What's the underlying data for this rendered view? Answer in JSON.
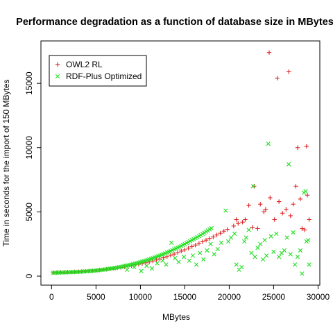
{
  "chart_data": {
    "type": "scatter",
    "title": "Performance degradation as a function of database size in MBytes",
    "xlabel": "MBytes",
    "ylabel": "Time in seconds for the import of 150 MBytes",
    "xlim": [
      -1200,
      30200
    ],
    "ylim": [
      -700,
      18300
    ],
    "x_ticks": [
      0,
      5000,
      10000,
      15000,
      20000,
      25000,
      30000
    ],
    "y_ticks": [
      0,
      5000,
      10000,
      15000
    ],
    "grid": false,
    "legend_position": "top-left",
    "series": [
      {
        "name": "OWL2 RL",
        "marker": "+",
        "color": "#DF2020",
        "points": [
          [
            200,
            280
          ],
          [
            600,
            290
          ],
          [
            1000,
            300
          ],
          [
            1400,
            300
          ],
          [
            1800,
            310
          ],
          [
            2200,
            320
          ],
          [
            2600,
            330
          ],
          [
            3000,
            340
          ],
          [
            3400,
            360
          ],
          [
            3800,
            380
          ],
          [
            4200,
            400
          ],
          [
            4600,
            420
          ],
          [
            5000,
            450
          ],
          [
            5400,
            480
          ],
          [
            5800,
            500
          ],
          [
            6200,
            530
          ],
          [
            6600,
            560
          ],
          [
            7000,
            600
          ],
          [
            7400,
            640
          ],
          [
            7800,
            680
          ],
          [
            8200,
            720
          ],
          [
            8600,
            770
          ],
          [
            9000,
            820
          ],
          [
            9400,
            870
          ],
          [
            9800,
            920
          ],
          [
            10200,
            980
          ],
          [
            10600,
            1040
          ],
          [
            11000,
            1100
          ],
          [
            11400,
            1180
          ],
          [
            11800,
            1260
          ],
          [
            12200,
            1340
          ],
          [
            12600,
            1430
          ],
          [
            13000,
            1520
          ],
          [
            13400,
            1620
          ],
          [
            13800,
            1720
          ],
          [
            14200,
            1830
          ],
          [
            14600,
            1950
          ],
          [
            15000,
            2050
          ],
          [
            15400,
            2180
          ],
          [
            15800,
            2300
          ],
          [
            16200,
            2420
          ],
          [
            16600,
            2550
          ],
          [
            17000,
            2680
          ],
          [
            17400,
            2800
          ],
          [
            17800,
            2930
          ],
          [
            18200,
            3050
          ],
          [
            18600,
            3200
          ],
          [
            19000,
            3340
          ],
          [
            19400,
            3500
          ],
          [
            19800,
            3640
          ],
          [
            20500,
            3900
          ],
          [
            20800,
            4400
          ],
          [
            21000,
            4100
          ],
          [
            21500,
            4200
          ],
          [
            21800,
            4400
          ],
          [
            22200,
            5500
          ],
          [
            22600,
            3800
          ],
          [
            22800,
            7000
          ],
          [
            23200,
            3700
          ],
          [
            23500,
            5600
          ],
          [
            23900,
            5000
          ],
          [
            24100,
            5200
          ],
          [
            24500,
            17400
          ],
          [
            24600,
            6100
          ],
          [
            25100,
            4400
          ],
          [
            25400,
            15400
          ],
          [
            25600,
            5800
          ],
          [
            26000,
            4900
          ],
          [
            26400,
            5200
          ],
          [
            26700,
            15900
          ],
          [
            26900,
            4700
          ],
          [
            27200,
            5600
          ],
          [
            27500,
            7000
          ],
          [
            27700,
            10000
          ],
          [
            28000,
            6000
          ],
          [
            28200,
            3700
          ],
          [
            28500,
            3600
          ],
          [
            28700,
            10100
          ],
          [
            28800,
            6300
          ],
          [
            29000,
            4400
          ]
        ]
      },
      {
        "name": "RDF-Plus Optimized",
        "marker": "x",
        "color": "#20DF20",
        "points": [
          [
            200,
            250
          ],
          [
            400,
            260
          ],
          [
            600,
            270
          ],
          [
            800,
            270
          ],
          [
            1000,
            280
          ],
          [
            1200,
            280
          ],
          [
            1400,
            290
          ],
          [
            1600,
            290
          ],
          [
            1800,
            300
          ],
          [
            2000,
            300
          ],
          [
            2200,
            310
          ],
          [
            2400,
            310
          ],
          [
            2600,
            320
          ],
          [
            2800,
            320
          ],
          [
            3000,
            330
          ],
          [
            3200,
            340
          ],
          [
            3400,
            350
          ],
          [
            3600,
            360
          ],
          [
            3800,
            370
          ],
          [
            4000,
            380
          ],
          [
            4200,
            390
          ],
          [
            4400,
            400
          ],
          [
            4600,
            410
          ],
          [
            4800,
            420
          ],
          [
            5000,
            440
          ],
          [
            5200,
            450
          ],
          [
            5400,
            470
          ],
          [
            5600,
            480
          ],
          [
            5800,
            500
          ],
          [
            6000,
            520
          ],
          [
            6200,
            540
          ],
          [
            6400,
            560
          ],
          [
            6600,
            580
          ],
          [
            6800,
            600
          ],
          [
            7000,
            620
          ],
          [
            7200,
            640
          ],
          [
            7400,
            670
          ],
          [
            7600,
            700
          ],
          [
            7800,
            720
          ],
          [
            8000,
            750
          ],
          [
            8200,
            780
          ],
          [
            8400,
            810
          ],
          [
            8600,
            840
          ],
          [
            8800,
            870
          ],
          [
            9000,
            900
          ],
          [
            9200,
            940
          ],
          [
            9400,
            980
          ],
          [
            9600,
            1010
          ],
          [
            9800,
            1050
          ],
          [
            10000,
            1090
          ],
          [
            10200,
            1130
          ],
          [
            10400,
            1170
          ],
          [
            10600,
            1210
          ],
          [
            10800,
            1260
          ],
          [
            11000,
            1300
          ],
          [
            11200,
            1350
          ],
          [
            11400,
            1400
          ],
          [
            11600,
            1450
          ],
          [
            11800,
            1500
          ],
          [
            12000,
            1550
          ],
          [
            12200,
            1600
          ],
          [
            12400,
            1660
          ],
          [
            12600,
            1720
          ],
          [
            12800,
            1780
          ],
          [
            13000,
            1840
          ],
          [
            13200,
            1900
          ],
          [
            13400,
            1960
          ],
          [
            13600,
            2020
          ],
          [
            13800,
            2090
          ],
          [
            14000,
            2150
          ],
          [
            14200,
            2220
          ],
          [
            14400,
            2290
          ],
          [
            14600,
            2360
          ],
          [
            14800,
            2430
          ],
          [
            15000,
            2500
          ],
          [
            15200,
            2580
          ],
          [
            15400,
            2650
          ],
          [
            15600,
            2730
          ],
          [
            15800,
            2800
          ],
          [
            16000,
            2880
          ],
          [
            16200,
            2960
          ],
          [
            16400,
            3040
          ],
          [
            16600,
            3120
          ],
          [
            16800,
            3200
          ],
          [
            17000,
            3290
          ],
          [
            17200,
            3380
          ],
          [
            17400,
            3460
          ],
          [
            17600,
            3550
          ],
          [
            17800,
            3640
          ],
          [
            18000,
            3730
          ],
          [
            8500,
            500
          ],
          [
            9300,
            700
          ],
          [
            10100,
            400
          ],
          [
            10700,
            800
          ],
          [
            11300,
            600
          ],
          [
            11900,
            1000
          ],
          [
            12500,
            1200
          ],
          [
            12900,
            900
          ],
          [
            13500,
            2600
          ],
          [
            13900,
            1400
          ],
          [
            14300,
            1100
          ],
          [
            14900,
            1500
          ],
          [
            15500,
            1200
          ],
          [
            15900,
            1600
          ],
          [
            16300,
            900
          ],
          [
            16700,
            1800
          ],
          [
            17100,
            1300
          ],
          [
            17500,
            2000
          ],
          [
            17900,
            2500
          ],
          [
            18300,
            1700
          ],
          [
            18700,
            2100
          ],
          [
            19100,
            2600
          ],
          [
            19600,
            5100
          ],
          [
            19900,
            2700
          ],
          [
            20200,
            3000
          ],
          [
            20600,
            3300
          ],
          [
            20800,
            900
          ],
          [
            21100,
            500
          ],
          [
            21400,
            700
          ],
          [
            21700,
            2700
          ],
          [
            21900,
            3000
          ],
          [
            22200,
            3600
          ],
          [
            22500,
            1800
          ],
          [
            22700,
            7000
          ],
          [
            22900,
            1500
          ],
          [
            23200,
            2200
          ],
          [
            23500,
            2500
          ],
          [
            23800,
            1300
          ],
          [
            24000,
            2800
          ],
          [
            24200,
            1600
          ],
          [
            24400,
            10300
          ],
          [
            24700,
            3100
          ],
          [
            25000,
            1900
          ],
          [
            25300,
            3300
          ],
          [
            25600,
            1500
          ],
          [
            25900,
            1800
          ],
          [
            26200,
            2000
          ],
          [
            26500,
            3000
          ],
          [
            26700,
            8700
          ],
          [
            26900,
            1700
          ],
          [
            27200,
            3400
          ],
          [
            27400,
            900
          ],
          [
            27700,
            1500
          ],
          [
            28000,
            2000
          ],
          [
            28200,
            200
          ],
          [
            28400,
            6500
          ],
          [
            28600,
            6600
          ],
          [
            28700,
            2700
          ],
          [
            28900,
            2800
          ],
          [
            29000,
            900
          ]
        ]
      }
    ]
  }
}
